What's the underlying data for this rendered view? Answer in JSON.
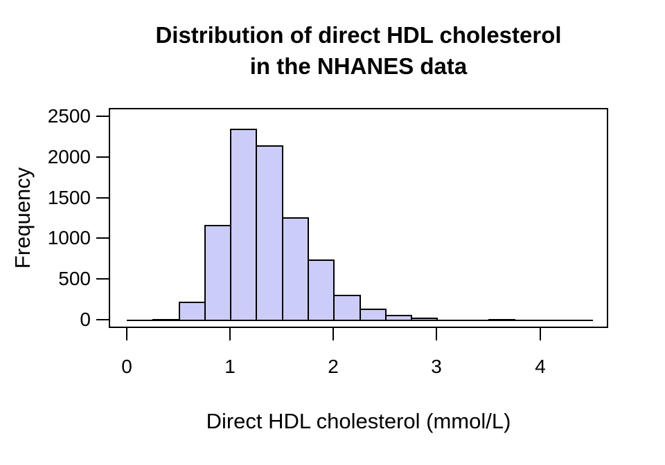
{
  "title": {
    "line1": "Distribution of direct HDL cholesterol",
    "line2": "in the NHANES data"
  },
  "chart_data": {
    "type": "bar",
    "subtype": "histogram",
    "title": "Distribution of direct HDL cholesterol in the NHANES data",
    "xlabel": "Direct HDL cholesterol (mmol/L)",
    "ylabel": "Frequency",
    "bin_start": 0,
    "bin_width": 0.25,
    "counts": [
      0,
      10,
      220,
      1165,
      2345,
      2145,
      1260,
      740,
      305,
      140,
      58,
      28,
      5,
      3,
      13,
      2,
      1,
      1
    ],
    "x_ticks": [
      0,
      1,
      2,
      3,
      4
    ],
    "y_ticks": [
      0,
      500,
      1000,
      1500,
      2000,
      2500
    ],
    "xlim": [
      -0.175,
      4.66
    ],
    "ylim": [
      -100,
      2600
    ],
    "bar_fill": "#ccccf8",
    "bar_border": "#000000",
    "grid": false,
    "legend": false
  }
}
